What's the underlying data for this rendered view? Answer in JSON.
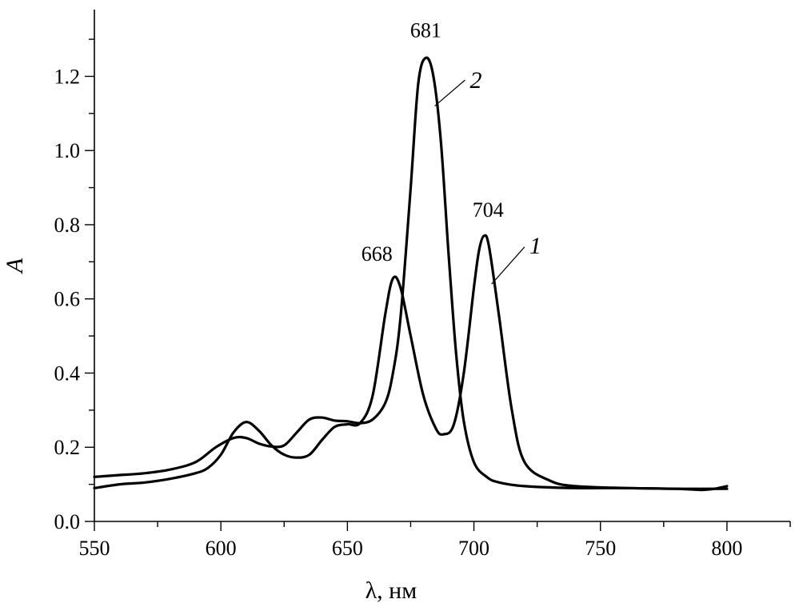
{
  "chart_data": {
    "type": "line",
    "xlabel": "λ, нм",
    "ylabel": "A",
    "xlim": [
      550,
      825
    ],
    "ylim": [
      0,
      1.38
    ],
    "x_ticks": [
      550,
      600,
      650,
      700,
      750,
      800
    ],
    "x_minor_step": 25,
    "y_ticks": [
      0.0,
      0.2,
      0.4,
      0.6,
      0.8,
      1.0,
      1.2
    ],
    "y_tick_labels": [
      "0.0",
      "0.2",
      "0.4",
      "0.6",
      "0.8",
      "1.0",
      "1.2"
    ],
    "y_minor_step": 0.1,
    "grid": false,
    "series": [
      {
        "name": "1",
        "x": [
          550,
          560,
          570,
          580,
          590,
          595,
          600,
          605,
          610,
          615,
          620,
          625,
          630,
          635,
          640,
          645,
          650,
          655,
          660,
          665,
          668,
          671,
          675,
          680,
          685,
          688,
          692,
          696,
          700,
          702,
          704,
          706,
          710,
          715,
          720,
          730,
          740,
          760,
          780,
          790,
          795,
          800
        ],
        "y": [
          0.09,
          0.1,
          0.105,
          0.115,
          0.13,
          0.145,
          0.18,
          0.24,
          0.268,
          0.245,
          0.205,
          0.18,
          0.172,
          0.18,
          0.22,
          0.255,
          0.262,
          0.265,
          0.34,
          0.56,
          0.655,
          0.63,
          0.5,
          0.34,
          0.25,
          0.235,
          0.26,
          0.4,
          0.63,
          0.73,
          0.77,
          0.74,
          0.55,
          0.3,
          0.16,
          0.11,
          0.095,
          0.09,
          0.088,
          0.085,
          0.088,
          0.095
        ]
      },
      {
        "name": "2",
        "x": [
          550,
          560,
          570,
          580,
          590,
          598,
          605,
          610,
          615,
          620,
          625,
          630,
          635,
          640,
          645,
          650,
          655,
          660,
          665,
          668,
          671,
          675,
          678,
          681,
          684,
          687,
          690,
          693,
          696,
          700,
          705,
          710,
          720,
          740,
          760,
          780,
          800
        ],
        "y": [
          0.12,
          0.125,
          0.13,
          0.14,
          0.16,
          0.2,
          0.225,
          0.225,
          0.21,
          0.202,
          0.205,
          0.24,
          0.275,
          0.28,
          0.272,
          0.27,
          0.265,
          0.275,
          0.32,
          0.4,
          0.55,
          0.9,
          1.18,
          1.25,
          1.2,
          1.02,
          0.72,
          0.45,
          0.27,
          0.16,
          0.12,
          0.105,
          0.095,
          0.09,
          0.09,
          0.088,
          0.088
        ]
      }
    ],
    "peak_labels": [
      {
        "text": "681",
        "x": 681,
        "y": 1.25
      },
      {
        "text": "668",
        "x": 668,
        "y": 0.655
      },
      {
        "text": "704",
        "x": 704,
        "y": 0.77
      }
    ]
  }
}
